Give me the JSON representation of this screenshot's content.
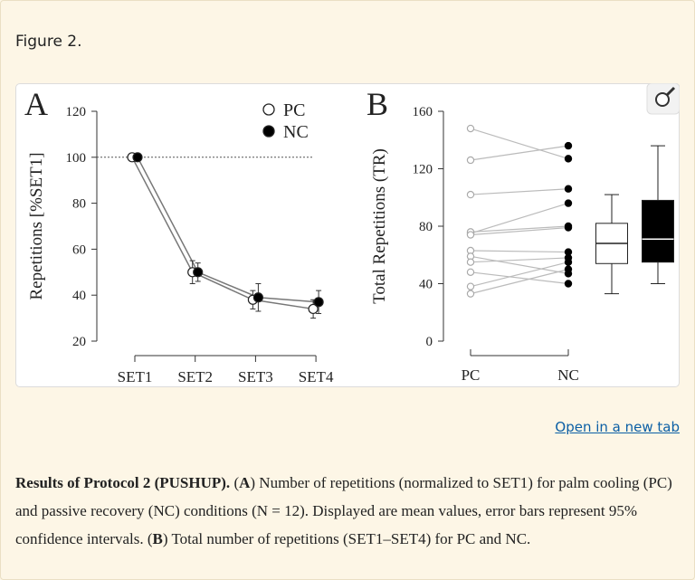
{
  "figure_label": "Figure 2.",
  "chart_data": [
    {
      "type": "line",
      "panel": "A",
      "y_label": "Repetitions [%SET1]",
      "categories": [
        "SET1",
        "SET2",
        "SET3",
        "SET4"
      ],
      "series": [
        {
          "name": "PC",
          "color": "#ffffff",
          "values": [
            100,
            50,
            38,
            34
          ],
          "errors": [
            null,
            5,
            4,
            4
          ]
        },
        {
          "name": "NC",
          "color": "#000000",
          "values": [
            100,
            50,
            39,
            37
          ],
          "errors": [
            null,
            4,
            6,
            5
          ]
        }
      ],
      "ylim": [
        20,
        120
      ],
      "yticks": [
        20,
        40,
        60,
        80,
        100,
        120
      ],
      "reference_line": 100,
      "legend": "top-right"
    },
    {
      "type": "paired_box",
      "panel": "B",
      "y_label": "Total Repetitions (TR)",
      "categories": [
        "PC",
        "NC"
      ],
      "series": [
        {
          "name": "PC",
          "color": "#ffffff",
          "values": [
            148,
            126,
            102,
            75,
            76,
            74,
            63,
            59,
            55,
            48,
            38,
            33
          ],
          "box": {
            "min": 33,
            "q1": 54,
            "median": 68,
            "q3": 82,
            "max": 102
          }
        },
        {
          "name": "NC",
          "color": "#000000",
          "values": [
            127,
            136,
            106,
            96,
            80,
            79,
            62,
            47,
            58,
            40,
            55,
            50
          ],
          "box": {
            "min": 40,
            "q1": 55,
            "median": 71,
            "q3": 98,
            "max": 136
          }
        }
      ],
      "ylim": [
        0,
        160
      ],
      "yticks": [
        0,
        40,
        80,
        120,
        160
      ]
    }
  ],
  "link": "Open in a new tab",
  "caption": [
    {
      "text": "Results of Protocol 2 (PUSHUP).",
      "bold": true
    },
    {
      "text": " (",
      "bold": false
    },
    {
      "text": "A",
      "bold": true
    },
    {
      "text": ") Number of repetitions (normalized to SET1) for palm cooling (PC) and passive recovery (NC) conditions (N = 12). Displayed are mean values, error bars represent 95% confidence intervals. (",
      "bold": false
    },
    {
      "text": "B",
      "bold": true
    },
    {
      "text": ") Total number of repetitions (SET1–SET4) for PC and NC.",
      "bold": false
    }
  ]
}
